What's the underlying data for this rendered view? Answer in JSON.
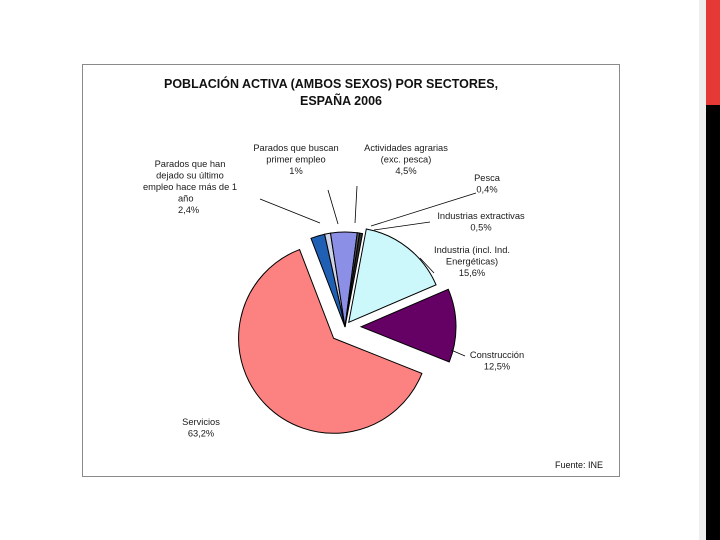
{
  "chart_data": {
    "type": "pie",
    "title_line1": "POBLACIÓN ACTIVA (AMBOS SEXOS) POR SECTORES,",
    "title_line2": "ESPAÑA 2006",
    "source": "Fuente: INE",
    "slices": [
      {
        "key": "parados_ultimo_empleo",
        "label_lines": [
          "Parados que han",
          "dejado su último",
          "empleo hace más de 1",
          "año",
          "2,4%"
        ],
        "value": 2.4,
        "color": "#1f5fb4"
      },
      {
        "key": "parados_primer_empleo",
        "label_lines": [
          "Parados que buscan",
          "primer empleo",
          "1%"
        ],
        "value": 1.0,
        "color": "#ced3e6"
      },
      {
        "key": "actividades_agrarias",
        "label_lines": [
          "Actividades agrarias",
          "(exc. pesca)",
          "4,5%"
        ],
        "value": 4.5,
        "color": "#8c8fe6"
      },
      {
        "key": "pesca",
        "label_lines": [
          "Pesca",
          "0,4%"
        ],
        "value": 0.4,
        "color": "#5b5b5b"
      },
      {
        "key": "industrias_extractivas",
        "label_lines": [
          "Industrias extractivas",
          "0,5%"
        ],
        "value": 0.5,
        "color": "#2f2f2f"
      },
      {
        "key": "industria",
        "label_lines": [
          "Industria (incl. Ind.",
          "Energéticas)",
          "15,6%"
        ],
        "value": 15.6,
        "color": "#ccf7fb"
      },
      {
        "key": "construccion",
        "label_lines": [
          "Construcción",
          "12,5%"
        ],
        "value": 12.5,
        "color": "#650064"
      },
      {
        "key": "servicios",
        "label_lines": [
          "Servicios",
          "63,2%"
        ],
        "value": 63.2,
        "color": "#fb8281"
      }
    ],
    "exploded": [
      "servicios",
      "construccion",
      "industria"
    ]
  }
}
